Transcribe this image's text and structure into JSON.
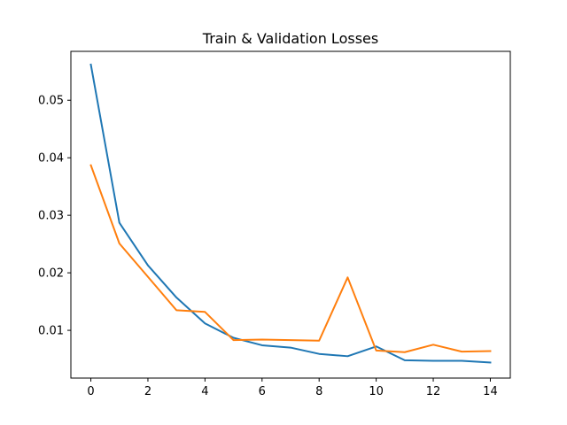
{
  "chart_data": {
    "type": "line",
    "title": "Train & Validation Losses",
    "xlabel": "",
    "ylabel": "",
    "xlim": [
      -0.7,
      14.7
    ],
    "ylim": [
      0.0017,
      0.0585
    ],
    "x_ticks": [
      0,
      2,
      4,
      6,
      8,
      10,
      12,
      14
    ],
    "y_ticks": [
      0.01,
      0.02,
      0.03,
      0.04,
      0.05
    ],
    "y_tick_labels": [
      "0.01",
      "0.02",
      "0.03",
      "0.04",
      "0.05"
    ],
    "x": [
      0,
      1,
      2,
      3,
      4,
      5,
      6,
      7,
      8,
      9,
      10,
      11,
      12,
      13,
      14
    ],
    "grid": false,
    "legend": "none",
    "series": [
      {
        "color": "#1f77b4",
        "values": [
          0.0562,
          0.0287,
          0.0213,
          0.0157,
          0.0112,
          0.0087,
          0.0074,
          0.007,
          0.0059,
          0.0055,
          0.0072,
          0.0048,
          0.0047,
          0.0047,
          0.0044
        ]
      },
      {
        "color": "#ff7f0e",
        "values": [
          0.0387,
          0.0251,
          0.0193,
          0.0135,
          0.0132,
          0.0083,
          0.0084,
          0.0083,
          0.0082,
          0.0192,
          0.0065,
          0.0062,
          0.0075,
          0.0063,
          0.0064
        ]
      }
    ]
  }
}
